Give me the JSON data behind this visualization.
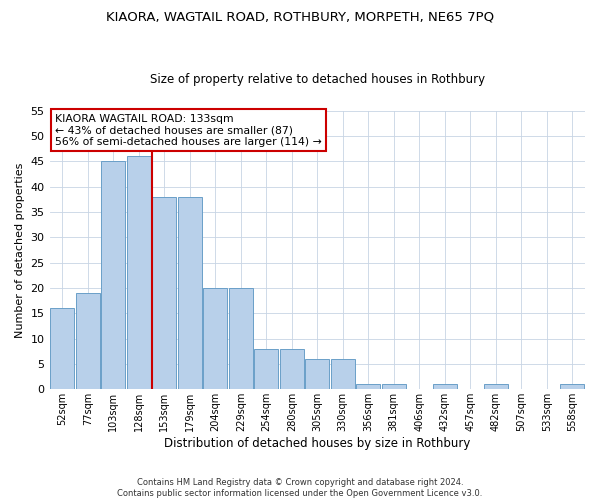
{
  "title1": "KIAORA, WAGTAIL ROAD, ROTHBURY, MORPETH, NE65 7PQ",
  "title2": "Size of property relative to detached houses in Rothbury",
  "xlabel": "Distribution of detached houses by size in Rothbury",
  "ylabel": "Number of detached properties",
  "categories": [
    "52sqm",
    "77sqm",
    "103sqm",
    "128sqm",
    "153sqm",
    "179sqm",
    "204sqm",
    "229sqm",
    "254sqm",
    "280sqm",
    "305sqm",
    "330sqm",
    "356sqm",
    "381sqm",
    "406sqm",
    "432sqm",
    "457sqm",
    "482sqm",
    "507sqm",
    "533sqm",
    "558sqm"
  ],
  "values": [
    16,
    19,
    45,
    46,
    38,
    38,
    20,
    20,
    8,
    8,
    6,
    6,
    1,
    1,
    0,
    1,
    0,
    1,
    0,
    0,
    1
  ],
  "bar_color": "#b8d0ea",
  "bar_edge_color": "#6a9fc8",
  "vline_color": "#cc0000",
  "vline_x": 3.5,
  "ylim": [
    0,
    55
  ],
  "yticks": [
    0,
    5,
    10,
    15,
    20,
    25,
    30,
    35,
    40,
    45,
    50,
    55
  ],
  "annotation_line1": "KIAORA WAGTAIL ROAD: 133sqm",
  "annotation_line2": "← 43% of detached houses are smaller (87)",
  "annotation_line3": "56% of semi-detached houses are larger (114) →",
  "annotation_box_color": "#ffffff",
  "annotation_box_edge": "#cc0000",
  "footer_text": "Contains HM Land Registry data © Crown copyright and database right 2024.\nContains public sector information licensed under the Open Government Licence v3.0.",
  "background_color": "#ffffff",
  "grid_color": "#c8d4e4"
}
